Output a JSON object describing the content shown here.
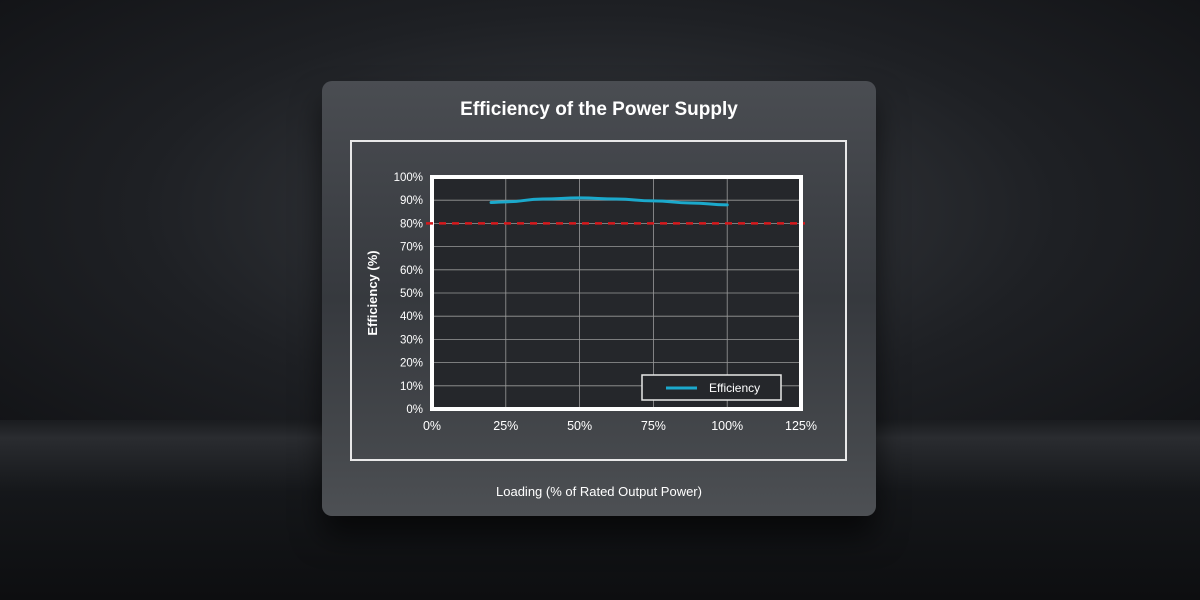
{
  "chart_data": {
    "type": "line",
    "title": "Efficiency of the Power Supply",
    "xlabel": "Loading (% of Rated Output Power)",
    "ylabel": "Efficiency (%)",
    "xlim": [
      0,
      125
    ],
    "ylim": [
      0,
      100
    ],
    "x_ticks": [
      "0%",
      "25%",
      "50%",
      "75%",
      "100%",
      "125%"
    ],
    "y_ticks": [
      "0%",
      "10%",
      "20%",
      "30%",
      "40%",
      "50%",
      "60%",
      "70%",
      "80%",
      "90%",
      "100%"
    ],
    "grid": true,
    "legend_position": "bottom-right",
    "series": [
      {
        "name": "Efficiency",
        "color": "#1ba9cc",
        "x": [
          20,
          25,
          37.5,
          50,
          62.5,
          75,
          87.5,
          100
        ],
        "y": [
          89,
          89.3,
          90.5,
          91,
          90.5,
          89.7,
          88.8,
          88
        ]
      }
    ],
    "reference_line": {
      "y": 80,
      "color": "#d7191c",
      "style": "dashed"
    }
  }
}
